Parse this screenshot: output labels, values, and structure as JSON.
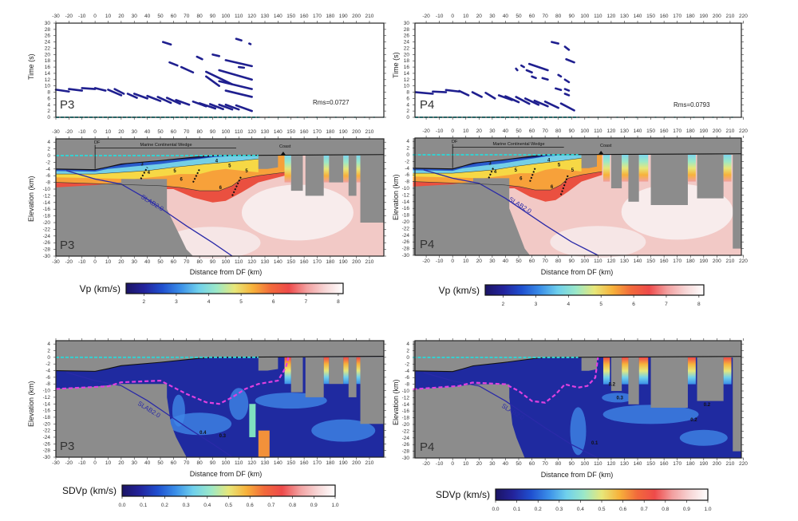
{
  "chart_data": [
    {
      "type": "scatter",
      "profile": "P3",
      "ylabel": "Time (s)",
      "xlim": [
        -30,
        221
      ],
      "ylim": [
        0,
        30
      ],
      "xticks": [
        -30,
        -20,
        -10,
        0,
        10,
        20,
        30,
        40,
        50,
        60,
        70,
        80,
        90,
        100,
        110,
        120,
        130,
        140,
        150,
        160,
        170,
        180,
        190,
        200,
        210
      ],
      "yticks": [
        0,
        2,
        4,
        6,
        8,
        10,
        12,
        14,
        16,
        18,
        20,
        22,
        24,
        26,
        28,
        30
      ],
      "rms": "Rms=0.0727",
      "station_line_end_km": 125,
      "picks": [
        [
          -30,
          8.8,
          -20,
          8.2
        ],
        [
          -20,
          9.0,
          -10,
          8.5
        ],
        [
          -10,
          9.3,
          0,
          9.0
        ],
        [
          0,
          9.3,
          8,
          8.5
        ],
        [
          10,
          8.8,
          20,
          7.0
        ],
        [
          15,
          9.0,
          22,
          7.5
        ],
        [
          25,
          7.5,
          32,
          6.2
        ],
        [
          30,
          7.5,
          40,
          6.0
        ],
        [
          40,
          6.8,
          50,
          5.2
        ],
        [
          48,
          6.5,
          58,
          4.6
        ],
        [
          55,
          6.2,
          65,
          4.3
        ],
        [
          62,
          5.5,
          72,
          4.0
        ],
        [
          75,
          5.0,
          85,
          3.5
        ],
        [
          80,
          4.5,
          92,
          2.8
        ],
        [
          88,
          4.2,
          98,
          2.6
        ],
        [
          95,
          4.0,
          105,
          2.5
        ],
        [
          100,
          4.0,
          110,
          2.5
        ],
        [
          108,
          3.8,
          120,
          2.0
        ],
        [
          52,
          24,
          58,
          23.2
        ],
        [
          57,
          17.5,
          63,
          16.5
        ],
        [
          66,
          16,
          75,
          14.3
        ],
        [
          78,
          19.3,
          82,
          18.5
        ],
        [
          85,
          13,
          95,
          10
        ],
        [
          85,
          14.5,
          105,
          10.5
        ],
        [
          95,
          15,
          120,
          12
        ],
        [
          90,
          20,
          95,
          19.5
        ],
        [
          100,
          18.2,
          120,
          16.3
        ],
        [
          95,
          11.5,
          120,
          9
        ],
        [
          100,
          8.5,
          120,
          6.5
        ],
        [
          110,
          16,
          114,
          15.8
        ],
        [
          108,
          25,
          112,
          24.5
        ],
        [
          118,
          23.5,
          119,
          23.3
        ]
      ]
    },
    {
      "type": "heatmap",
      "profile": "P3",
      "quantity": "Vp (km/s)",
      "xlabel": "Distance from DF (km)",
      "ylabel": "Elevation (km)",
      "xlim": [
        -30,
        221
      ],
      "ylim": [
        -30,
        5
      ],
      "xticks": [
        -30,
        -20,
        -10,
        0,
        10,
        20,
        30,
        40,
        50,
        60,
        70,
        80,
        90,
        100,
        110,
        120,
        130,
        140,
        150,
        160,
        170,
        180,
        190,
        200,
        210
      ],
      "yticks": [
        4,
        2,
        0,
        -2,
        -4,
        -6,
        -8,
        -10,
        -12,
        -14,
        -16,
        -18,
        -20,
        -22,
        -24,
        -26,
        -28,
        -30
      ],
      "annotations": {
        "df": "DF",
        "wedge": "Marine Continental Wedge",
        "coast": "Coast",
        "slab": "SLAB2.0"
      },
      "contour_labels": [
        "3",
        "4",
        "5",
        "4",
        "5",
        "6",
        "6",
        "5"
      ]
    },
    {
      "type": "heatmap",
      "profile": "P3",
      "quantity": "SDVp (km/s)",
      "xlabel": "Distance from DF (km)",
      "ylabel": "Elevation (km)",
      "xlim": [
        -30,
        221
      ],
      "ylim": [
        -30,
        5
      ],
      "xticks": [
        -30,
        -20,
        -10,
        0,
        10,
        20,
        30,
        40,
        50,
        60,
        70,
        80,
        90,
        100,
        110,
        120,
        130,
        140,
        150,
        160,
        170,
        180,
        190,
        200,
        210
      ],
      "yticks": [
        4,
        2,
        0,
        -2,
        -4,
        -6,
        -8,
        -10,
        -12,
        -14,
        -16,
        -18,
        -20,
        -22,
        -24,
        -26,
        -28,
        -30
      ],
      "annotations": {
        "slab": "SLAB2.0"
      },
      "contour_labels": [
        "0.4",
        "0.3"
      ]
    },
    {
      "type": "scatter",
      "profile": "P4",
      "ylabel": "Time (s)",
      "xlim": [
        -28.5,
        218.5
      ],
      "ylim": [
        0,
        30
      ],
      "xticks": [
        -20,
        -10,
        0,
        10,
        20,
        30,
        40,
        50,
        60,
        70,
        80,
        90,
        100,
        110,
        120,
        130,
        140,
        150,
        160,
        170,
        180,
        190,
        200,
        210,
        220
      ],
      "yticks": [
        0,
        2,
        4,
        6,
        8,
        10,
        12,
        14,
        16,
        18,
        20,
        22,
        24,
        26,
        28,
        30
      ],
      "rms": "Rms=0.0793",
      "station_line_end_km": 95,
      "picks": [
        [
          -28,
          8,
          -15,
          7.5
        ],
        [
          -15,
          8.2,
          -5,
          8
        ],
        [
          -5,
          8.7,
          5,
          8.2
        ],
        [
          5,
          8.4,
          12,
          7
        ],
        [
          15,
          8,
          22,
          6.5
        ],
        [
          25,
          7.8,
          32,
          6
        ],
        [
          35,
          7,
          45,
          5.5
        ],
        [
          40,
          6.7,
          50,
          4.8
        ],
        [
          48,
          6.5,
          58,
          4.3
        ],
        [
          55,
          6,
          65,
          4
        ],
        [
          62,
          5.3,
          72,
          3.5
        ],
        [
          70,
          5,
          80,
          3
        ],
        [
          82,
          4.4,
          92,
          2.2
        ],
        [
          75,
          24,
          80,
          23.5
        ],
        [
          85,
          22.5,
          88,
          21.5
        ],
        [
          86,
          18.5,
          92,
          17.5
        ],
        [
          58,
          17,
          72,
          15
        ],
        [
          52,
          16.5,
          54,
          16
        ],
        [
          48,
          15.5,
          49,
          15
        ],
        [
          56,
          15,
          60,
          14.3
        ],
        [
          60,
          13,
          63,
          12.5
        ],
        [
          68,
          12.5,
          72,
          12
        ],
        [
          80,
          13.5,
          82,
          13
        ],
        [
          85,
          12,
          88,
          11.2
        ],
        [
          78,
          9.2,
          82,
          8.7
        ],
        [
          85,
          9,
          88,
          8.5
        ],
        [
          85,
          7.5,
          88,
          7
        ]
      ]
    },
    {
      "type": "heatmap",
      "profile": "P4",
      "quantity": "Vp (km/s)",
      "xlabel": "Distance from DF (km)",
      "ylabel": "Elevation (km)",
      "xlim": [
        -28.5,
        218.5
      ],
      "ylim": [
        -30,
        5
      ],
      "xticks": [
        -20,
        -10,
        0,
        10,
        20,
        30,
        40,
        50,
        60,
        70,
        80,
        90,
        100,
        110,
        120,
        130,
        140,
        150,
        160,
        170,
        180,
        190,
        200,
        210,
        220
      ],
      "yticks": [
        4,
        2,
        0,
        -2,
        -4,
        -6,
        -8,
        -10,
        -12,
        -14,
        -16,
        -18,
        -20,
        -22,
        -24,
        -26,
        -28,
        -30
      ],
      "annotations": {
        "df": "DF",
        "wedge": "Marine Continental Wedge",
        "coast": "Coast",
        "slab": "SLAB2.0"
      },
      "contour_labels": [
        "3",
        "4",
        "5",
        "4",
        "5",
        "6",
        "6",
        "5"
      ]
    },
    {
      "type": "heatmap",
      "profile": "P4",
      "quantity": "SDVp (km/s)",
      "xlabel": "Distance from DF (km)",
      "ylabel": "Elevation (km)",
      "xlim": [
        -28.5,
        218.5
      ],
      "ylim": [
        -30,
        5
      ],
      "xticks": [
        -20,
        -10,
        0,
        10,
        20,
        30,
        40,
        50,
        60,
        70,
        80,
        90,
        100,
        110,
        120,
        130,
        140,
        150,
        160,
        170,
        180,
        190,
        200,
        210,
        220
      ],
      "yticks": [
        4,
        2,
        0,
        -2,
        -4,
        -6,
        -8,
        -10,
        -12,
        -14,
        -16,
        -18,
        -20,
        -22,
        -24,
        -26,
        -28,
        -30
      ],
      "annotations": {
        "slab": "SLAB2.0"
      },
      "contour_labels": [
        "0.2",
        "0.3",
        "0.1",
        "0.2",
        "0.2"
      ]
    }
  ],
  "colorbars": [
    {
      "label": "Vp (km/s)",
      "range": [
        1.45,
        8.15
      ],
      "ticks": [
        2,
        3,
        4,
        5,
        6,
        7,
        8
      ]
    },
    {
      "label": "SDVp (km/s)",
      "range": [
        0,
        1
      ],
      "ticks": [
        "0.0",
        "0.1",
        "0.2",
        "0.3",
        "0.4",
        "0.5",
        "0.6",
        "0.7",
        "0.8",
        "0.9",
        "1.0"
      ]
    },
    {
      "label": "Vp (km/s)",
      "range": [
        1.45,
        8.15
      ],
      "ticks": [
        2,
        3,
        4,
        5,
        6,
        7,
        8
      ]
    },
    {
      "label": "SDVp (km/s)",
      "range": [
        0,
        1
      ],
      "ticks": [
        "0.0",
        "0.1",
        "0.2",
        "0.3",
        "0.4",
        "0.5",
        "0.6",
        "0.7",
        "0.8",
        "0.9",
        "1.0"
      ]
    }
  ],
  "colors": {
    "colormap": [
      "#1b1464",
      "#23239c",
      "#1f4fcf",
      "#3a8ee8",
      "#6fd0ec",
      "#9be8c8",
      "#e7e77a",
      "#f7b23b",
      "#f26a3b",
      "#ee4a4a",
      "#f2a0a0",
      "#f7d6d6",
      "#ffffff"
    ],
    "mask_gray": "#8c8c8c",
    "picks": "#1f1f8f",
    "stations": "#35d0d0",
    "slab": "#2a2aa8",
    "moho_dashed": "#e040e0"
  }
}
